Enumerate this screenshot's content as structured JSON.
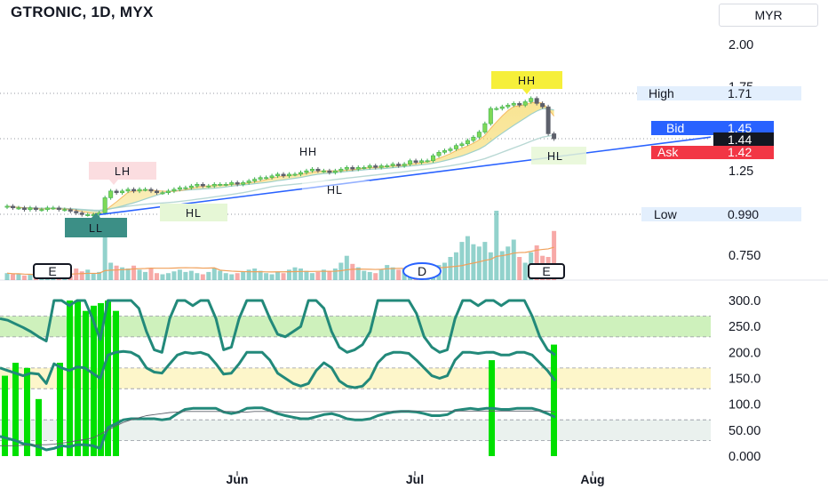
{
  "chart_title": "GTRONIC, 1D, MYX",
  "currency_button": "MYR",
  "colors": {
    "up": "#26a69a",
    "down": "#ef5350",
    "bid": "#2962ff",
    "ask": "#f23645",
    "trend": "#2962ff",
    "rsi_bar": "#00e000",
    "indicator": "#22897a"
  },
  "price_labels": {
    "high": {
      "label": "High",
      "value": "1.71"
    },
    "bid": {
      "label": "Bid",
      "value": "1.45"
    },
    "last": {
      "value": "1.44"
    },
    "ask": {
      "label": "Ask",
      "value": "1.42"
    },
    "low": {
      "label": "Low",
      "value": "0.990"
    }
  },
  "pattern_labels": [
    "LL",
    "LH",
    "HL",
    "HH",
    "HL",
    "HH",
    "HL"
  ],
  "event_markers": [
    "E",
    "D",
    "E"
  ],
  "chart_data": [
    {
      "type": "candlestick",
      "title": "GTRONIC, 1D, MYX",
      "y_ticks": [
        "2.00",
        "1.75",
        "1.50",
        "1.25",
        "1.00",
        "0.750"
      ],
      "ylim": [
        0.68,
        2.07
      ],
      "x_ticks": [
        "Jun",
        "Jul",
        "Aug"
      ],
      "x_range": [
        "Apr",
        "Aug"
      ],
      "close": [
        1.04,
        1.03,
        1.03,
        1.02,
        1.03,
        1.02,
        1.02,
        1.03,
        1.03,
        1.02,
        1.02,
        1.01,
        1.0,
        0.99,
        0.99,
        0.99,
        1.0,
        1.09,
        1.13,
        1.12,
        1.13,
        1.14,
        1.13,
        1.14,
        1.14,
        1.13,
        1.12,
        1.12,
        1.13,
        1.14,
        1.15,
        1.15,
        1.16,
        1.17,
        1.16,
        1.16,
        1.17,
        1.17,
        1.17,
        1.18,
        1.17,
        1.18,
        1.19,
        1.2,
        1.21,
        1.21,
        1.22,
        1.23,
        1.22,
        1.23,
        1.23,
        1.24,
        1.25,
        1.26,
        1.25,
        1.25,
        1.24,
        1.25,
        1.26,
        1.27,
        1.26,
        1.27,
        1.27,
        1.28,
        1.27,
        1.28,
        1.28,
        1.29,
        1.28,
        1.29,
        1.31,
        1.3,
        1.31,
        1.31,
        1.34,
        1.36,
        1.37,
        1.38,
        1.4,
        1.41,
        1.43,
        1.45,
        1.48,
        1.53,
        1.62,
        1.62,
        1.63,
        1.64,
        1.65,
        1.64,
        1.66,
        1.68,
        1.65,
        1.63,
        1.47,
        1.44
      ],
      "volume": [
        12,
        10,
        11,
        8,
        9,
        7,
        14,
        10,
        12,
        9,
        11,
        8,
        20,
        15,
        18,
        12,
        14,
        95,
        30,
        25,
        22,
        20,
        25,
        18,
        14,
        20,
        12,
        10,
        12,
        15,
        18,
        14,
        16,
        12,
        10,
        14,
        20,
        16,
        12,
        10,
        12,
        14,
        18,
        20,
        16,
        12,
        10,
        14,
        12,
        18,
        22,
        20,
        16,
        12,
        14,
        18,
        16,
        20,
        30,
        42,
        28,
        22,
        16,
        14,
        12,
        18,
        26,
        22,
        18,
        20,
        24,
        14,
        18,
        16,
        22,
        26,
        30,
        40,
        48,
        66,
        76,
        62,
        58,
        66,
        48,
        120,
        50,
        58,
        70,
        40,
        30,
        48,
        60,
        42,
        40,
        85
      ],
      "moving_averages": [
        "ma_fast",
        "ma_mid",
        "ma_slow"
      ],
      "trendline": {
        "from": 0.99,
        "to": 1.45
      }
    },
    {
      "type": "line",
      "y_ticks": [
        "300.0",
        "250.0",
        "200.0",
        "150.0",
        "100.0",
        "50.00",
        "0.000"
      ],
      "ylim": [
        -5,
        310
      ],
      "bands": [
        [
          230,
          270
        ],
        [
          130,
          170
        ],
        [
          30,
          70
        ]
      ],
      "series": [
        {
          "values": [
            265,
            262,
            255,
            248,
            240,
            230,
            222,
            300,
            300,
            290,
            300,
            300,
            265,
            225,
            300,
            300,
            300,
            300,
            285,
            240,
            205,
            200,
            265,
            300,
            300,
            290,
            300,
            300,
            265,
            205,
            210,
            265,
            300,
            300,
            300,
            265,
            235,
            230,
            240,
            250,
            300,
            300,
            285,
            240,
            210,
            200,
            205,
            215,
            240,
            300,
            300,
            300,
            300,
            300,
            275,
            230,
            210,
            200,
            205,
            265,
            300,
            300,
            290,
            300,
            300,
            290,
            300,
            300,
            300,
            270,
            230,
            205,
            195
          ]
        },
        {
          "values": [
            170,
            165,
            160,
            155,
            160,
            158,
            140,
            178,
            170,
            165,
            172,
            170,
            160,
            150,
            195,
            200,
            202,
            200,
            192,
            170,
            162,
            160,
            178,
            195,
            200,
            198,
            200,
            195,
            178,
            158,
            160,
            178,
            200,
            200,
            200,
            185,
            160,
            150,
            140,
            135,
            140,
            165,
            180,
            170,
            145,
            135,
            132,
            135,
            150,
            180,
            195,
            200,
            200,
            198,
            185,
            170,
            155,
            150,
            155,
            185,
            200,
            200,
            198,
            200,
            200,
            195,
            195,
            200,
            200,
            195,
            180,
            165,
            145
          ]
        },
        {
          "values": [
            38,
            34,
            30,
            24,
            22,
            18,
            12,
            15,
            20,
            18,
            22,
            22,
            20,
            15,
            55,
            62,
            70,
            72,
            72,
            72,
            72,
            70,
            72,
            82,
            90,
            92,
            92,
            92,
            92,
            85,
            82,
            85,
            92,
            93,
            93,
            88,
            82,
            78,
            75,
            72,
            72,
            76,
            80,
            82,
            78,
            72,
            70,
            70,
            72,
            78,
            82,
            85,
            86,
            86,
            85,
            82,
            78,
            78,
            80,
            88,
            90,
            92,
            90,
            92,
            92,
            90,
            90,
            92,
            92,
            92,
            88,
            82,
            75
          ]
        },
        {
          "values": [
            20,
            20,
            20,
            21,
            21,
            22,
            22,
            23,
            25,
            27,
            30,
            32,
            35,
            42,
            50,
            58,
            65,
            70,
            74,
            78,
            80,
            82,
            84,
            85,
            86,
            86,
            86,
            86,
            86,
            86,
            86,
            85,
            85,
            86,
            86,
            86,
            86,
            85,
            85,
            85,
            85,
            85,
            86,
            86,
            86,
            86,
            86,
            86,
            86,
            86,
            86,
            86,
            86,
            87,
            87,
            87,
            87,
            87,
            87,
            87,
            87,
            87,
            87,
            87,
            87,
            87,
            87,
            87,
            87,
            87,
            87,
            87,
            85
          ]
        }
      ],
      "bars": [
        155,
        180,
        170,
        110,
        180,
        300,
        300,
        280,
        290,
        295,
        300,
        280,
        110,
        185,
        215
      ]
    }
  ]
}
